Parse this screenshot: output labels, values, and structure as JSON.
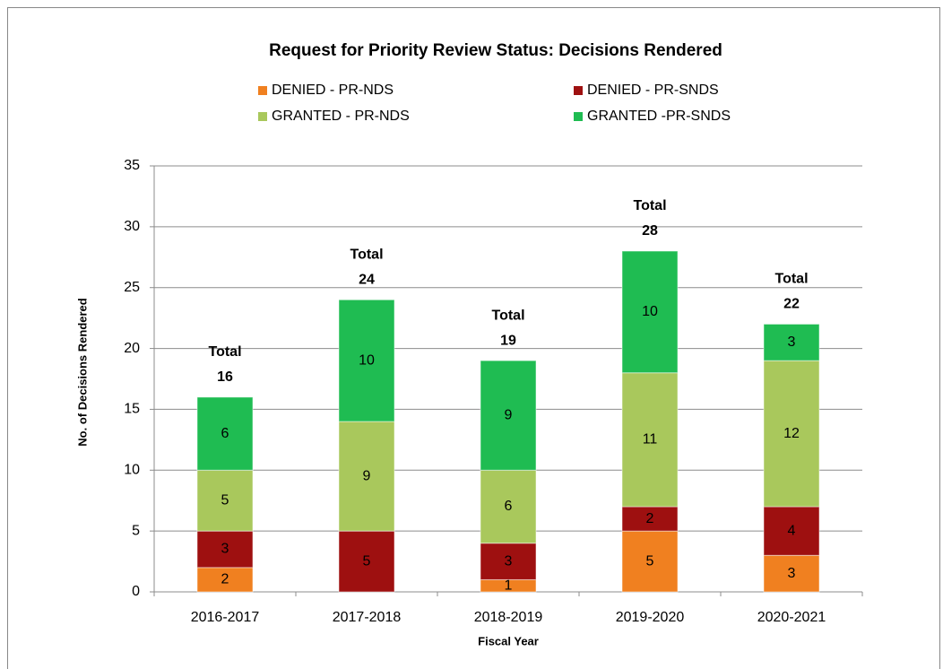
{
  "chart_data": {
    "type": "stacked_bar",
    "title": "Request for Priority Review Status:  Decisions Rendered",
    "x_label": "Fiscal Year",
    "y_label": "No. of Decisions Rendered",
    "categories": [
      "2016-2017",
      "2017-2018",
      "2018-2019",
      "2019-2020",
      "2020-2021"
    ],
    "series": [
      {
        "name": "DENIED - PR-NDS",
        "color": "#f08020",
        "values": [
          2,
          0,
          1,
          5,
          3
        ]
      },
      {
        "name": "DENIED - PR-SNDS",
        "color": "#9e1010",
        "values": [
          3,
          5,
          3,
          2,
          4
        ]
      },
      {
        "name": "GRANTED - PR-NDS",
        "color": "#a9c85c",
        "values": [
          5,
          9,
          6,
          11,
          12
        ]
      },
      {
        "name": "GRANTED -PR-SNDS",
        "color": "#1fbc52",
        "values": [
          6,
          10,
          9,
          10,
          3
        ]
      }
    ],
    "total_label": "Total",
    "totals": [
      16,
      24,
      19,
      28,
      22
    ],
    "ylim": [
      0,
      35
    ],
    "yticks": [
      0,
      5,
      10,
      15,
      20,
      25,
      30,
      35
    ],
    "grid": true,
    "legend": "top"
  }
}
